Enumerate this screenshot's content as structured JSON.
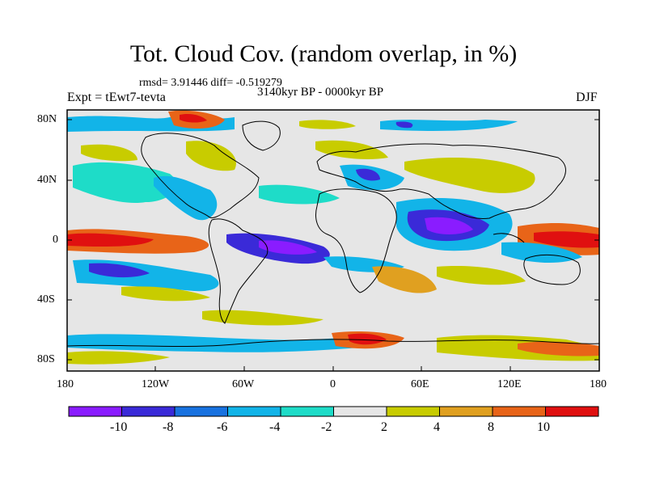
{
  "title": "Tot. Cloud Cov. (random overlap, in %)",
  "stats": "rmsd= 3.91446 diff= -0.519279",
  "period": "3140kyr BP - 0000kyr BP",
  "experiment": "Expt = tEwt7-tevta",
  "season": "DJF",
  "lat_ticks": [
    "80N",
    "40N",
    "0",
    "40S",
    "80S"
  ],
  "lon_ticks": [
    "180",
    "120W",
    "60W",
    "0",
    "60E",
    "120E",
    "180"
  ],
  "colorbar": {
    "colors": [
      "#8a1cff",
      "#3a2ad8",
      "#1872e0",
      "#12b4e8",
      "#1edcc8",
      "#e6e6e6",
      "#c8cc00",
      "#e0a020",
      "#e86418",
      "#e01010"
    ],
    "labels": [
      "-10",
      "-8",
      "-6",
      "-4",
      "-2",
      "2",
      "4",
      "8",
      "10"
    ]
  },
  "colors": {
    "background_field": "#e6e6e6",
    "coastline": "#000000"
  }
}
